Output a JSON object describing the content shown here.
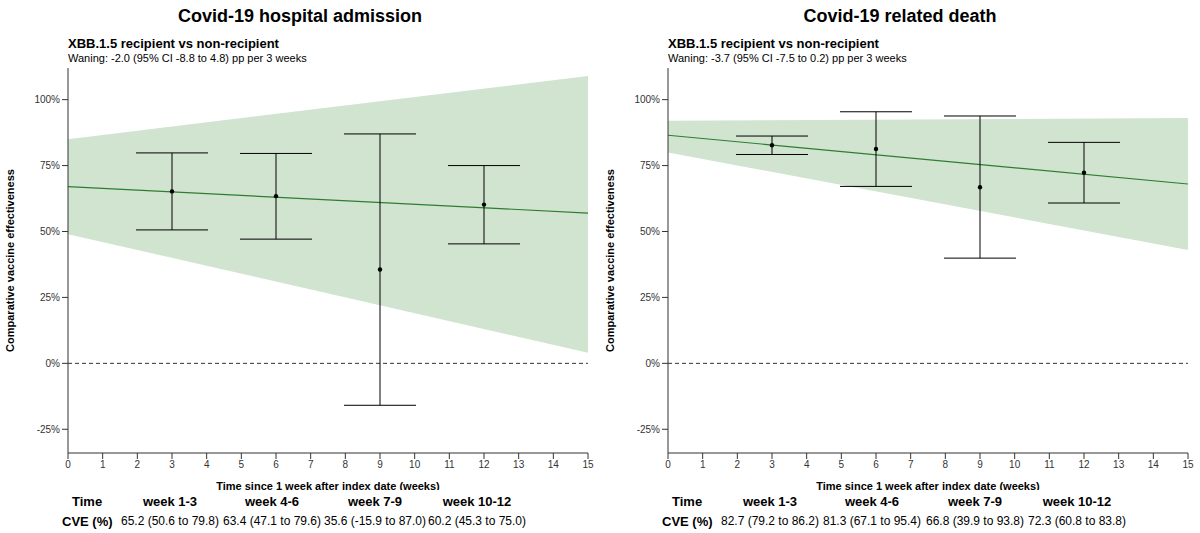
{
  "chart_data": [
    {
      "type": "line",
      "title": "Covid-19 hospital admission",
      "subtitle": "XBB.1.5 recipient vs non-recipient",
      "annotation": "Waning: -2.0 (95% CI -8.8 to 4.8) pp per 3 weeks",
      "x_label": "Time since 1 week after index date (weeks)",
      "y_label": "Comparative vaccine effectiveness",
      "xlim": [
        0,
        15
      ],
      "xticks": [
        0,
        1,
        2,
        3,
        4,
        5,
        6,
        7,
        8,
        9,
        10,
        11,
        12,
        13,
        14,
        15
      ],
      "ylim": [
        -34,
        112
      ],
      "yticks": [
        {
          "value": -25,
          "label": "-25%"
        },
        {
          "value": 0,
          "label": "0%"
        },
        {
          "value": 25,
          "label": "25%"
        },
        {
          "value": 50,
          "label": "50%"
        },
        {
          "value": 75,
          "label": "75%"
        },
        {
          "value": 100,
          "label": "100%"
        }
      ],
      "reference_y": 0,
      "band": {
        "x": [
          0,
          15
        ],
        "lower": [
          49,
          4
        ],
        "upper": [
          85,
          109
        ],
        "color": "#d0e4d0"
      },
      "trend": {
        "x": [
          0,
          15
        ],
        "values": [
          67,
          57
        ],
        "color": "#2e7d32"
      },
      "points": {
        "x": [
          3,
          6,
          9,
          12
        ],
        "values": [
          65.2,
          63.4,
          35.6,
          60.2
        ],
        "lower": [
          50.6,
          47.1,
          -15.9,
          45.3
        ],
        "upper": [
          79.8,
          79.6,
          87.0,
          75.0
        ],
        "color": "#000000"
      },
      "table": {
        "header": "Time",
        "label": "CVE (%)",
        "columns": [
          "week 1-3",
          "week 4-6",
          "week 7-9",
          "week 10-12"
        ],
        "cells": [
          "65.2 (50.6 to 79.8)",
          "63.4 (47.1 to 79.6)",
          "35.6 (-15.9 to 87.0)",
          "60.2 (45.3 to 75.0)"
        ]
      }
    },
    {
      "type": "line",
      "title": "Covid-19 related death",
      "subtitle": "XBB.1.5 recipient vs non-recipient",
      "annotation": "Waning: -3.7 (95% CI -7.5 to 0.2) pp per 3 weeks",
      "x_label": "Time since 1 week after index date (weeks)",
      "y_label": "Comparative vaccine effectiveness",
      "xlim": [
        0,
        15
      ],
      "xticks": [
        0,
        1,
        2,
        3,
        4,
        5,
        6,
        7,
        8,
        9,
        10,
        11,
        12,
        13,
        14,
        15
      ],
      "ylim": [
        -34,
        112
      ],
      "yticks": [
        {
          "value": -25,
          "label": "-25%"
        },
        {
          "value": 0,
          "label": "0%"
        },
        {
          "value": 25,
          "label": "25%"
        },
        {
          "value": 50,
          "label": "50%"
        },
        {
          "value": 75,
          "label": "75%"
        },
        {
          "value": 100,
          "label": "100%"
        }
      ],
      "reference_y": 0,
      "band": {
        "x": [
          0,
          15
        ],
        "lower": [
          80,
          43
        ],
        "upper": [
          92,
          93
        ],
        "color": "#d0e4d0"
      },
      "trend": {
        "x": [
          0,
          15
        ],
        "values": [
          86.5,
          68
        ],
        "color": "#2e7d32"
      },
      "points": {
        "x": [
          3,
          6,
          9,
          12
        ],
        "values": [
          82.7,
          81.3,
          66.8,
          72.3
        ],
        "lower": [
          79.2,
          67.1,
          39.9,
          60.8
        ],
        "upper": [
          86.2,
          95.4,
          93.8,
          83.8
        ],
        "color": "#000000"
      },
      "table": {
        "header": "Time",
        "label": "CVE (%)",
        "columns": [
          "week 1-3",
          "week 4-6",
          "week 7-9",
          "week 10-12"
        ],
        "cells": [
          "82.7 (79.2 to 86.2)",
          "81.3 (67.1 to 95.4)",
          "66.8 (39.9 to 93.8)",
          "72.3 (60.8 to 83.8)"
        ]
      }
    }
  ]
}
